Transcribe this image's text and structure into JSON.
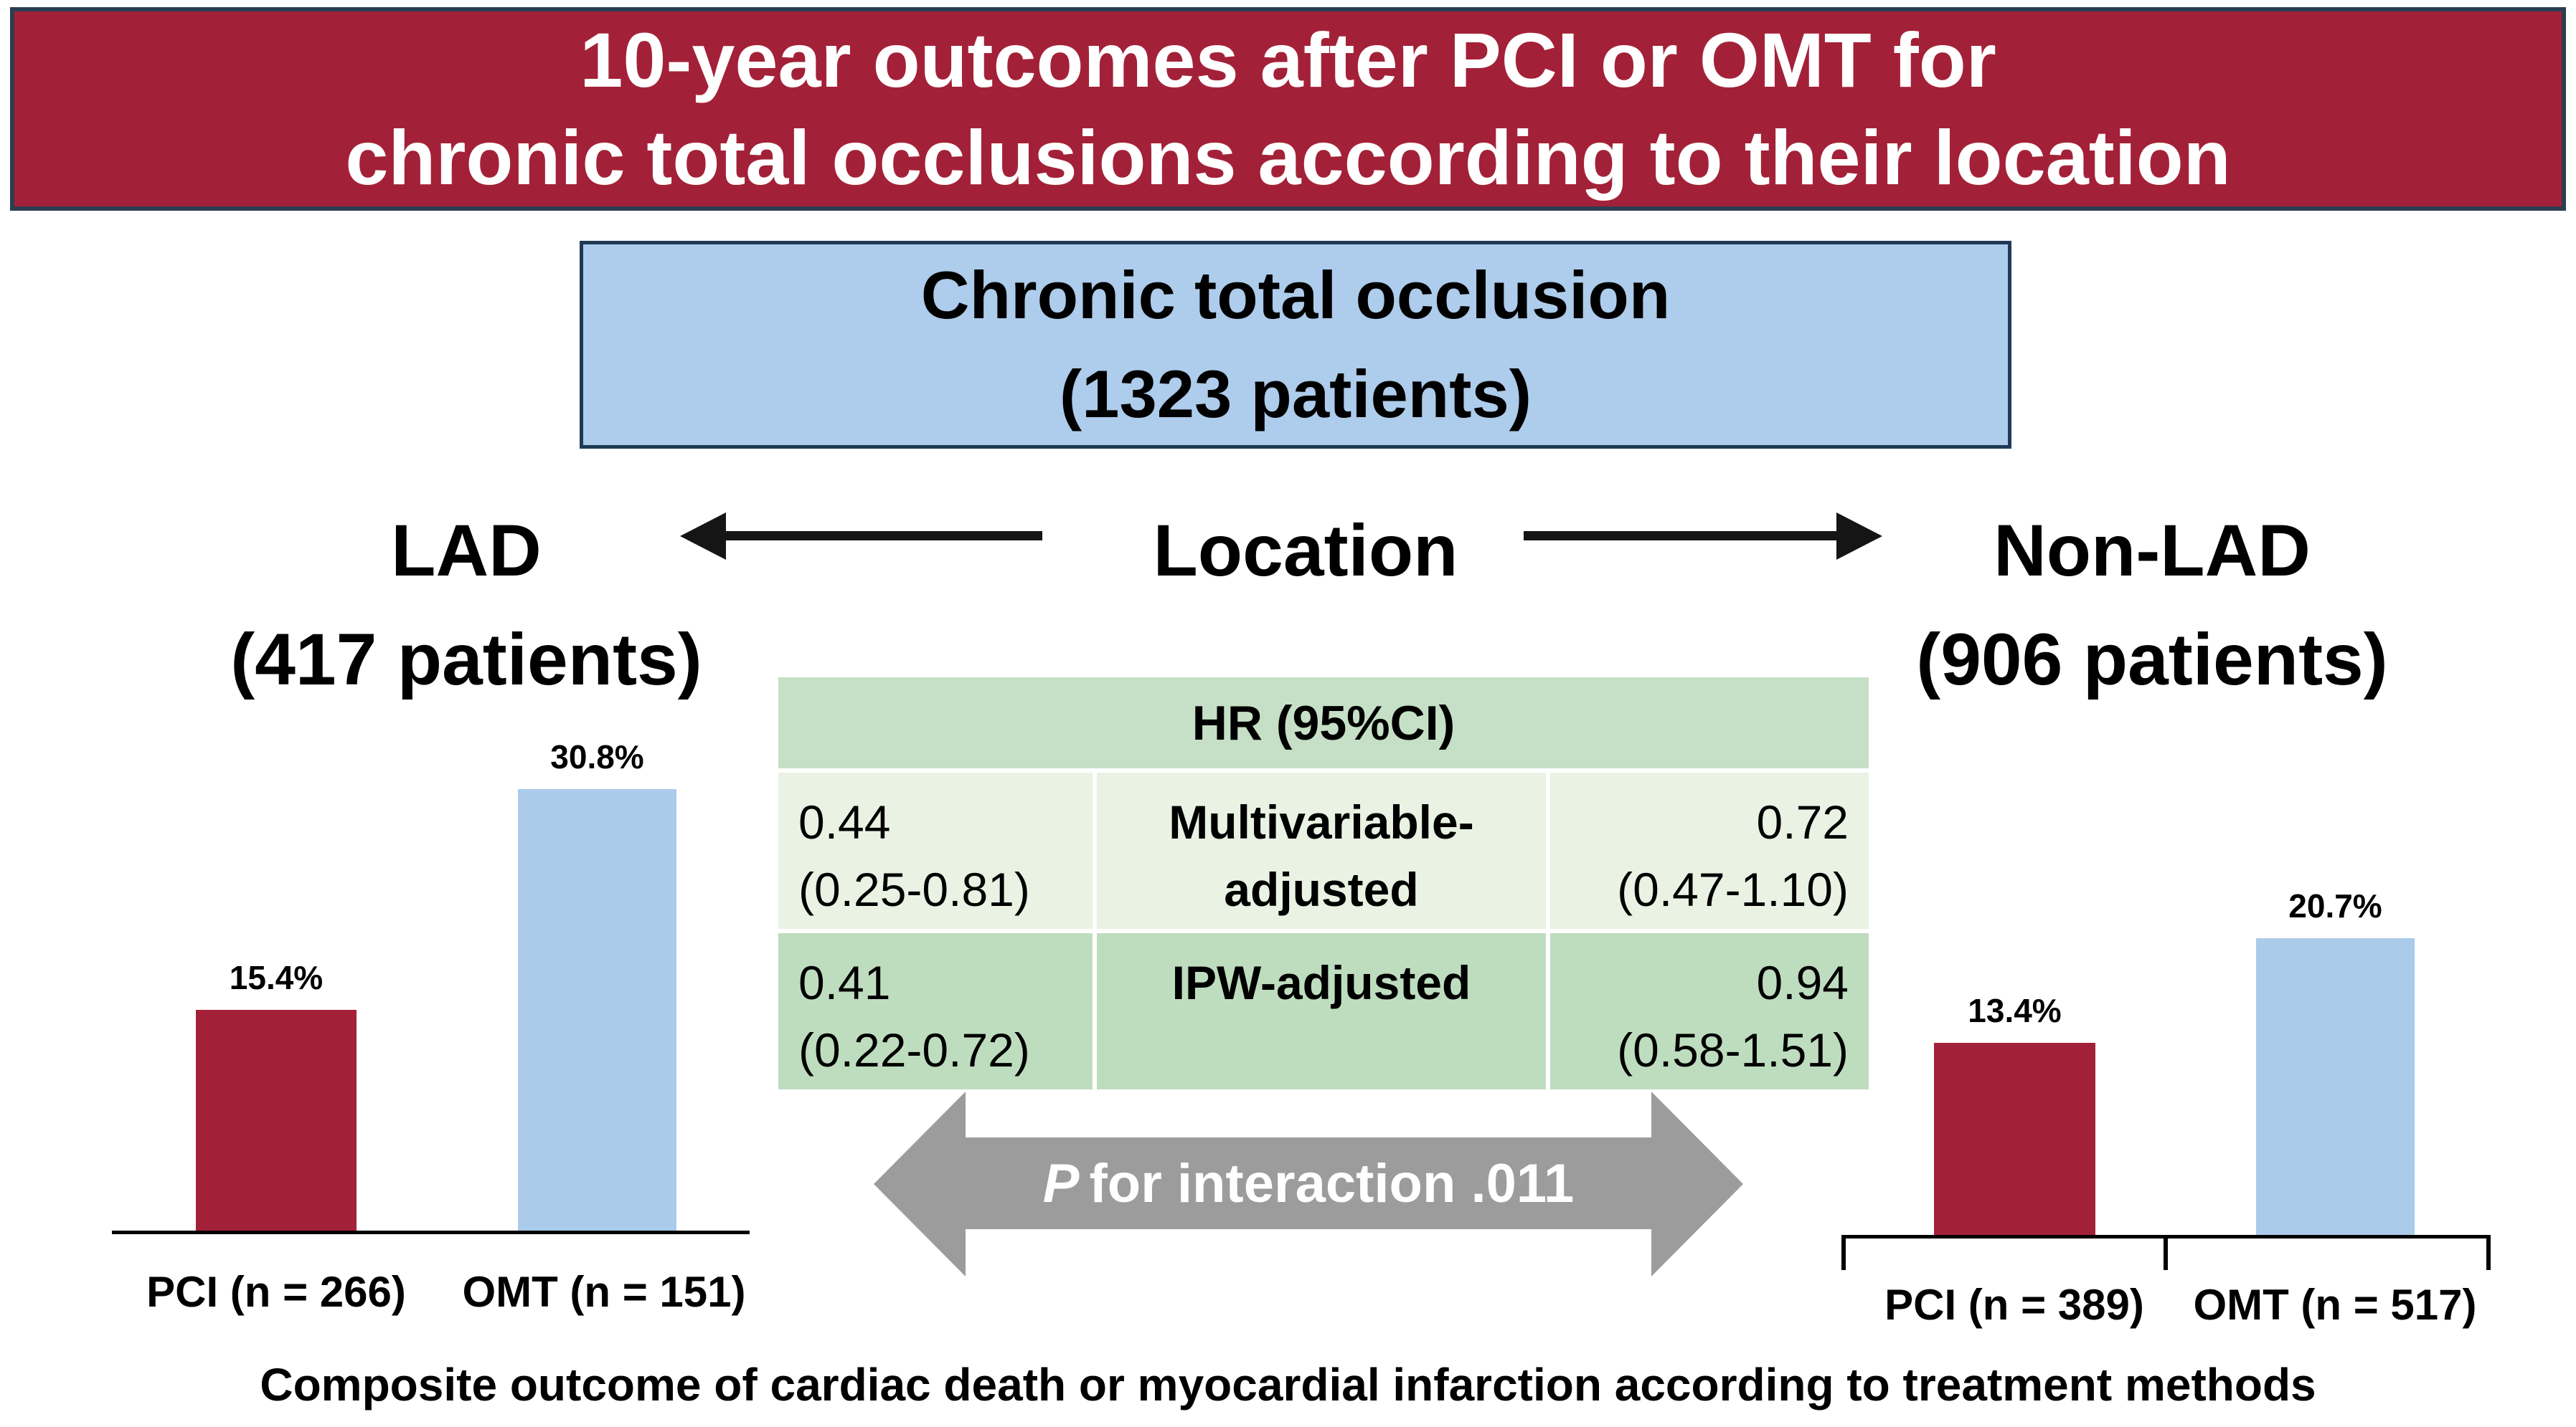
{
  "figure": {
    "title_line1": "10-year outcomes after PCI or OMT for",
    "title_line2": "chronic total occlusions according to their location",
    "caption": "Composite outcome of cardiac death or myocardial infarction according to treatment methods"
  },
  "root_box": {
    "line1": "Chronic total occlusion",
    "line2": "(1323 patients)"
  },
  "split": {
    "left_name": "LAD",
    "left_patients": "(417 patients)",
    "center_label": "Location",
    "right_name": "Non-LAD",
    "right_patients": "(906 patients)"
  },
  "hr_table": {
    "header": "HR (95%CI)",
    "rows": [
      {
        "lad_hr": "0.44",
        "lad_ci": "(0.25-0.81)",
        "model_line1": "Multivariable-",
        "model_line2": "adjusted",
        "nonlad_hr": "0.72",
        "nonlad_ci": "(0.47-1.10)"
      },
      {
        "lad_hr": "0.41",
        "lad_ci": "(0.22-0.72)",
        "model_line1": "IPW-adjusted",
        "model_line2": "",
        "nonlad_hr": "0.94",
        "nonlad_ci": "(0.58-1.51)"
      }
    ]
  },
  "interaction": {
    "p_symbol": "P",
    "text": "for interaction .011"
  },
  "charts": {
    "left": {
      "bar1_value_label": "15.4%",
      "bar1_axis_label": "PCI (n = 266)",
      "bar2_value_label": "30.8%",
      "bar2_axis_label": "OMT (n = 151)"
    },
    "right": {
      "bar1_value_label": "13.4%",
      "bar1_axis_label": "PCI (n = 389)",
      "bar2_value_label": "20.7%",
      "bar2_axis_label": "OMT (n = 517)"
    }
  },
  "chart_data": [
    {
      "type": "bar",
      "title": "LAD (417 patients)",
      "categories": [
        "PCI (n = 266)",
        "OMT (n = 151)"
      ],
      "values": [
        15.4,
        30.8
      ],
      "unit": "%",
      "bar_colors": [
        "#A32138",
        "#ABCBEA"
      ],
      "xlabel": "",
      "ylabel": "",
      "grid": false,
      "legend": "none"
    },
    {
      "type": "bar",
      "title": "Non-LAD (906 patients)",
      "categories": [
        "PCI (n = 389)",
        "OMT (n = 517)"
      ],
      "values": [
        13.4,
        20.7
      ],
      "unit": "%",
      "bar_colors": [
        "#A32138",
        "#ABCBEA"
      ],
      "xlabel": "",
      "ylabel": "",
      "grid": false,
      "legend": "none"
    }
  ],
  "colors": {
    "banner_bg": "#A32138",
    "banner_border": "#2C3E50",
    "box_blue_bg": "#AECCEB",
    "box_blue_border": "#1F3A55",
    "table_header_green": "#C5E0C6",
    "table_row_light": "#EAF3E3",
    "table_row_green": "#BEDDBF",
    "arrow_gray": "#9C9C9C",
    "bar_red": "#A32138",
    "bar_blue": "#ABCBEA",
    "title_text": "#FFFFFF",
    "body_text": "#000000"
  }
}
